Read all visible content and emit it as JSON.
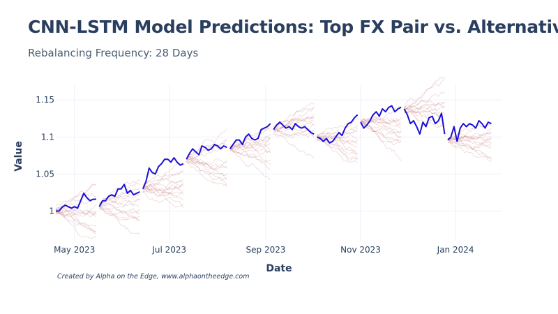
{
  "chart_data": {
    "type": "line",
    "title": "CNN-LSTM Model Predictions: Top FX Pair vs. Alternatives",
    "subtitle": "Rebalancing Frequency: 28 Days",
    "xlabel": "Date",
    "ylabel": "Value",
    "xlim": [
      "2023-04-19",
      "2024-01-31"
    ],
    "ylim": [
      0.96,
      1.17
    ],
    "x_ticks": [
      {
        "date": "2023-05-01",
        "label": "May 2023"
      },
      {
        "date": "2023-07-01",
        "label": "Jul 2023"
      },
      {
        "date": "2023-09-01",
        "label": "Sep 2023"
      },
      {
        "date": "2023-11-01",
        "label": "Nov 2023"
      },
      {
        "date": "2024-01-01",
        "label": "Jan 2024"
      }
    ],
    "y_ticks": [
      {
        "value": 1.0,
        "label": "1"
      },
      {
        "value": 1.05,
        "label": "1.05"
      },
      {
        "value": 1.1,
        "label": "1.1"
      },
      {
        "value": 1.15,
        "label": "1.15"
      }
    ],
    "grid": true,
    "legend": "none",
    "colors": {
      "top_pair": "#1a0fd6",
      "alternatives": "#b04848",
      "grid": "#ebf0f8"
    },
    "rebalance_segments": [
      {
        "start": "2023-04-19",
        "end": "2023-05-16",
        "top_pair": [
          [
            0,
            1.0
          ],
          [
            2,
            1.0
          ],
          [
            4,
            1.005
          ],
          [
            6,
            1.008
          ],
          [
            8,
            1.006
          ],
          [
            10,
            1.004
          ],
          [
            12,
            1.006
          ],
          [
            14,
            1.004
          ],
          [
            16,
            1.014
          ],
          [
            18,
            1.024
          ],
          [
            20,
            1.018
          ],
          [
            22,
            1.014
          ],
          [
            24,
            1.016
          ],
          [
            26,
            1.016
          ]
        ]
      },
      {
        "start": "2023-05-17",
        "end": "2023-06-13",
        "top_pair": [
          [
            0,
            1.006
          ],
          [
            2,
            1.014
          ],
          [
            4,
            1.014
          ],
          [
            6,
            1.02
          ],
          [
            8,
            1.022
          ],
          [
            10,
            1.02
          ],
          [
            12,
            1.03
          ],
          [
            14,
            1.03
          ],
          [
            16,
            1.036
          ],
          [
            18,
            1.024
          ],
          [
            20,
            1.028
          ],
          [
            22,
            1.022
          ],
          [
            24,
            1.024
          ],
          [
            26,
            1.026
          ]
        ]
      },
      {
        "start": "2023-06-14",
        "end": "2023-07-11",
        "top_pair": [
          [
            0,
            1.03
          ],
          [
            2,
            1.04
          ],
          [
            4,
            1.058
          ],
          [
            6,
            1.052
          ],
          [
            8,
            1.05
          ],
          [
            10,
            1.06
          ],
          [
            12,
            1.064
          ],
          [
            14,
            1.07
          ],
          [
            16,
            1.07
          ],
          [
            18,
            1.066
          ],
          [
            20,
            1.072
          ],
          [
            22,
            1.066
          ],
          [
            24,
            1.062
          ],
          [
            26,
            1.064
          ]
        ]
      },
      {
        "start": "2023-07-12",
        "end": "2023-08-08",
        "top_pair": [
          [
            0,
            1.07
          ],
          [
            2,
            1.078
          ],
          [
            4,
            1.084
          ],
          [
            6,
            1.08
          ],
          [
            8,
            1.076
          ],
          [
            10,
            1.088
          ],
          [
            12,
            1.086
          ],
          [
            14,
            1.082
          ],
          [
            16,
            1.084
          ],
          [
            18,
            1.09
          ],
          [
            20,
            1.088
          ],
          [
            22,
            1.084
          ],
          [
            24,
            1.088
          ],
          [
            26,
            1.086
          ]
        ]
      },
      {
        "start": "2023-08-09",
        "end": "2023-09-05",
        "top_pair": [
          [
            0,
            1.084
          ],
          [
            2,
            1.09
          ],
          [
            4,
            1.096
          ],
          [
            6,
            1.096
          ],
          [
            8,
            1.09
          ],
          [
            10,
            1.1
          ],
          [
            12,
            1.104
          ],
          [
            14,
            1.098
          ],
          [
            16,
            1.096
          ],
          [
            18,
            1.098
          ],
          [
            20,
            1.11
          ],
          [
            22,
            1.112
          ],
          [
            24,
            1.114
          ],
          [
            26,
            1.118
          ]
        ]
      },
      {
        "start": "2023-09-06",
        "end": "2023-10-03",
        "top_pair": [
          [
            0,
            1.11
          ],
          [
            2,
            1.116
          ],
          [
            4,
            1.12
          ],
          [
            6,
            1.116
          ],
          [
            8,
            1.112
          ],
          [
            10,
            1.114
          ],
          [
            12,
            1.11
          ],
          [
            14,
            1.118
          ],
          [
            16,
            1.114
          ],
          [
            18,
            1.112
          ],
          [
            20,
            1.114
          ],
          [
            22,
            1.11
          ],
          [
            24,
            1.106
          ],
          [
            26,
            1.104
          ]
        ]
      },
      {
        "start": "2023-10-04",
        "end": "2023-10-31",
        "top_pair": [
          [
            0,
            1.1
          ],
          [
            2,
            1.098
          ],
          [
            4,
            1.094
          ],
          [
            6,
            1.098
          ],
          [
            8,
            1.092
          ],
          [
            10,
            1.094
          ],
          [
            12,
            1.1
          ],
          [
            14,
            1.106
          ],
          [
            16,
            1.102
          ],
          [
            18,
            1.112
          ],
          [
            20,
            1.118
          ],
          [
            22,
            1.12
          ],
          [
            24,
            1.126
          ],
          [
            26,
            1.13
          ]
        ]
      },
      {
        "start": "2023-11-01",
        "end": "2023-11-28",
        "top_pair": [
          [
            0,
            1.12
          ],
          [
            2,
            1.112
          ],
          [
            4,
            1.116
          ],
          [
            6,
            1.122
          ],
          [
            8,
            1.13
          ],
          [
            10,
            1.134
          ],
          [
            12,
            1.128
          ],
          [
            14,
            1.138
          ],
          [
            16,
            1.134
          ],
          [
            18,
            1.14
          ],
          [
            20,
            1.142
          ],
          [
            22,
            1.134
          ],
          [
            24,
            1.138
          ],
          [
            26,
            1.14
          ]
        ]
      },
      {
        "start": "2023-11-29",
        "end": "2023-12-26",
        "top_pair": [
          [
            0,
            1.138
          ],
          [
            2,
            1.13
          ],
          [
            4,
            1.118
          ],
          [
            6,
            1.122
          ],
          [
            8,
            1.114
          ],
          [
            10,
            1.104
          ],
          [
            12,
            1.12
          ],
          [
            14,
            1.114
          ],
          [
            16,
            1.126
          ],
          [
            18,
            1.128
          ],
          [
            20,
            1.118
          ],
          [
            22,
            1.122
          ],
          [
            24,
            1.132
          ],
          [
            26,
            1.104
          ]
        ]
      },
      {
        "start": "2023-12-27",
        "end": "2024-01-23",
        "top_pair": [
          [
            0,
            1.096
          ],
          [
            2,
            1.1
          ],
          [
            4,
            1.114
          ],
          [
            6,
            1.094
          ],
          [
            8,
            1.112
          ],
          [
            10,
            1.118
          ],
          [
            12,
            1.114
          ],
          [
            14,
            1.118
          ],
          [
            16,
            1.116
          ],
          [
            18,
            1.112
          ],
          [
            20,
            1.122
          ],
          [
            22,
            1.118
          ],
          [
            24,
            1.112
          ],
          [
            26,
            1.12
          ],
          [
            28,
            1.118
          ]
        ]
      }
    ]
  }
}
